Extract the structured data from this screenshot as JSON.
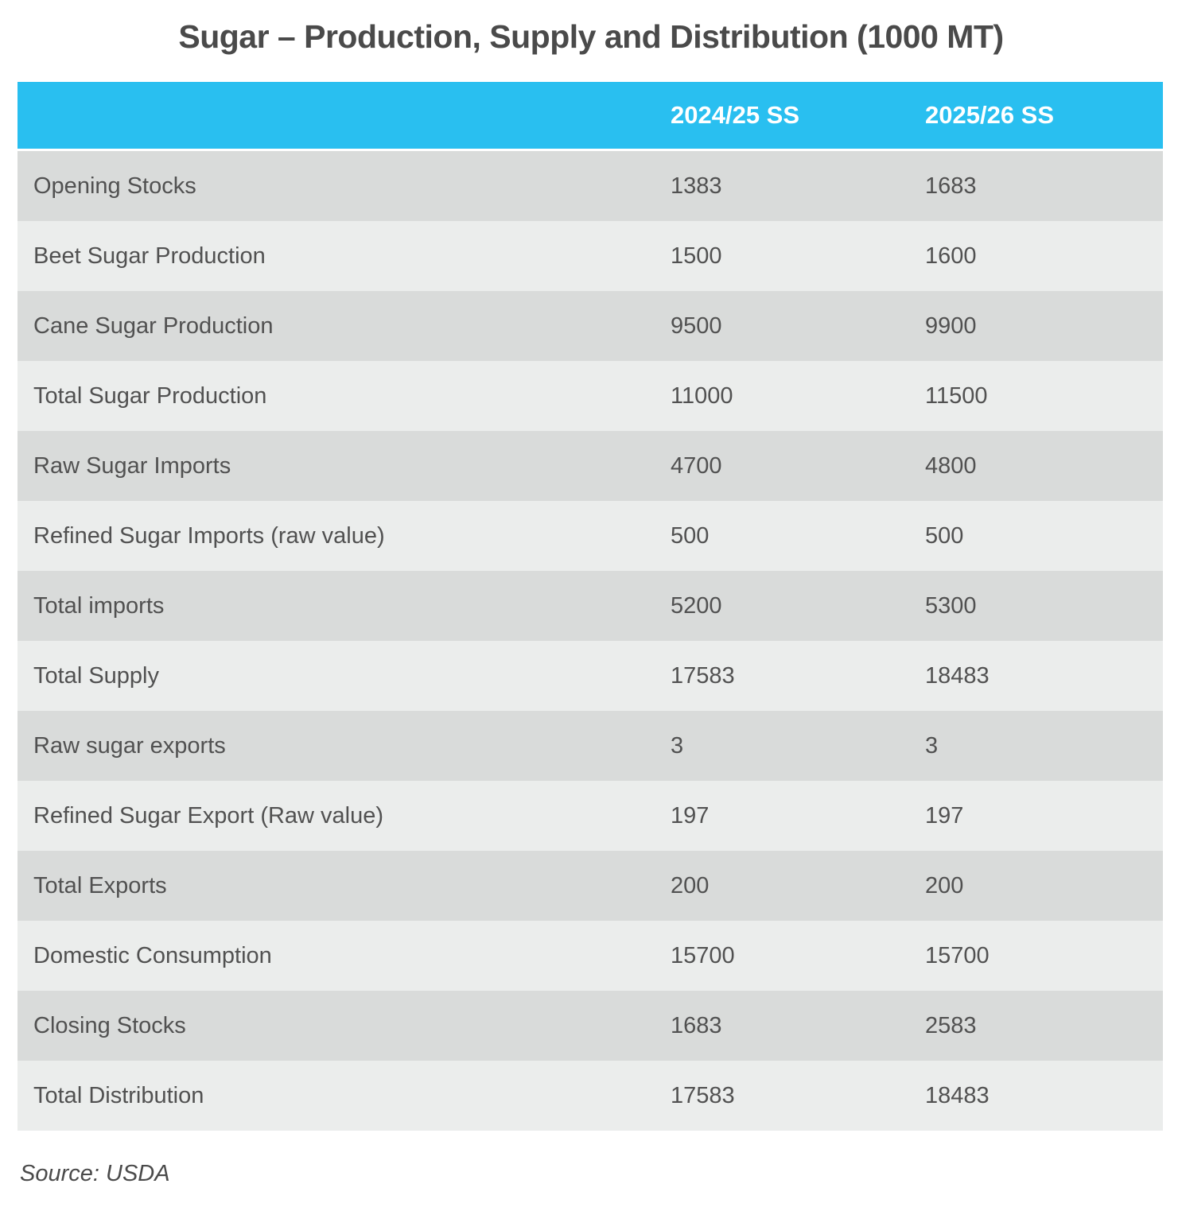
{
  "title": "Sugar – Production, Supply and Distribution (1000 MT)",
  "source": "Source: USDA",
  "colors": {
    "header_bg": "#29bff0",
    "row_dark": "#d9dbda",
    "row_light": "#ebedec",
    "header_text": "#ffffff",
    "body_text": "#515151"
  },
  "table": {
    "columns": [
      "",
      "2024/25 SS",
      "2025/26 SS"
    ],
    "rows": [
      {
        "label": "Opening Stocks",
        "v1": "1383",
        "v2": "1683"
      },
      {
        "label": "Beet Sugar Production",
        "v1": "1500",
        "v2": "1600"
      },
      {
        "label": "Cane Sugar Production",
        "v1": "9500",
        "v2": "9900"
      },
      {
        "label": "Total Sugar Production",
        "v1": "11000",
        "v2": "11500"
      },
      {
        "label": "Raw Sugar Imports",
        "v1": "4700",
        "v2": "4800"
      },
      {
        "label": "Refined Sugar Imports (raw value)",
        "v1": "500",
        "v2": "500"
      },
      {
        "label": "Total imports",
        "v1": "5200",
        "v2": "5300"
      },
      {
        "label": "Total Supply",
        "v1": "17583",
        "v2": "18483"
      },
      {
        "label": "Raw sugar exports",
        "v1": "3",
        "v2": "3"
      },
      {
        "label": "Refined Sugar Export (Raw value)",
        "v1": "197",
        "v2": "197"
      },
      {
        "label": "Total Exports",
        "v1": "200",
        "v2": "200"
      },
      {
        "label": "Domestic Consumption",
        "v1": "15700",
        "v2": "15700"
      },
      {
        "label": "Closing Stocks",
        "v1": "1683",
        "v2": "2583"
      },
      {
        "label": "Total Distribution",
        "v1": "17583",
        "v2": "18483"
      }
    ]
  },
  "chart_data": {
    "type": "table",
    "title": "Sugar – Production, Supply and Distribution (1000 MT)",
    "unit": "1000 MT",
    "categories": [
      "Opening Stocks",
      "Beet Sugar Production",
      "Cane Sugar Production",
      "Total Sugar Production",
      "Raw Sugar Imports",
      "Refined Sugar Imports (raw value)",
      "Total imports",
      "Total Supply",
      "Raw sugar exports",
      "Refined Sugar Export (Raw value)",
      "Total Exports",
      "Domestic Consumption",
      "Closing Stocks",
      "Total Distribution"
    ],
    "series": [
      {
        "name": "2024/25 SS",
        "values": [
          1383,
          1500,
          9500,
          11000,
          4700,
          500,
          5200,
          17583,
          3,
          197,
          200,
          15700,
          1683,
          17583
        ]
      },
      {
        "name": "2025/26 SS",
        "values": [
          1683,
          1600,
          9900,
          11500,
          4800,
          500,
          5300,
          18483,
          3,
          197,
          200,
          15700,
          2583,
          18483
        ]
      }
    ],
    "source": "USDA"
  }
}
